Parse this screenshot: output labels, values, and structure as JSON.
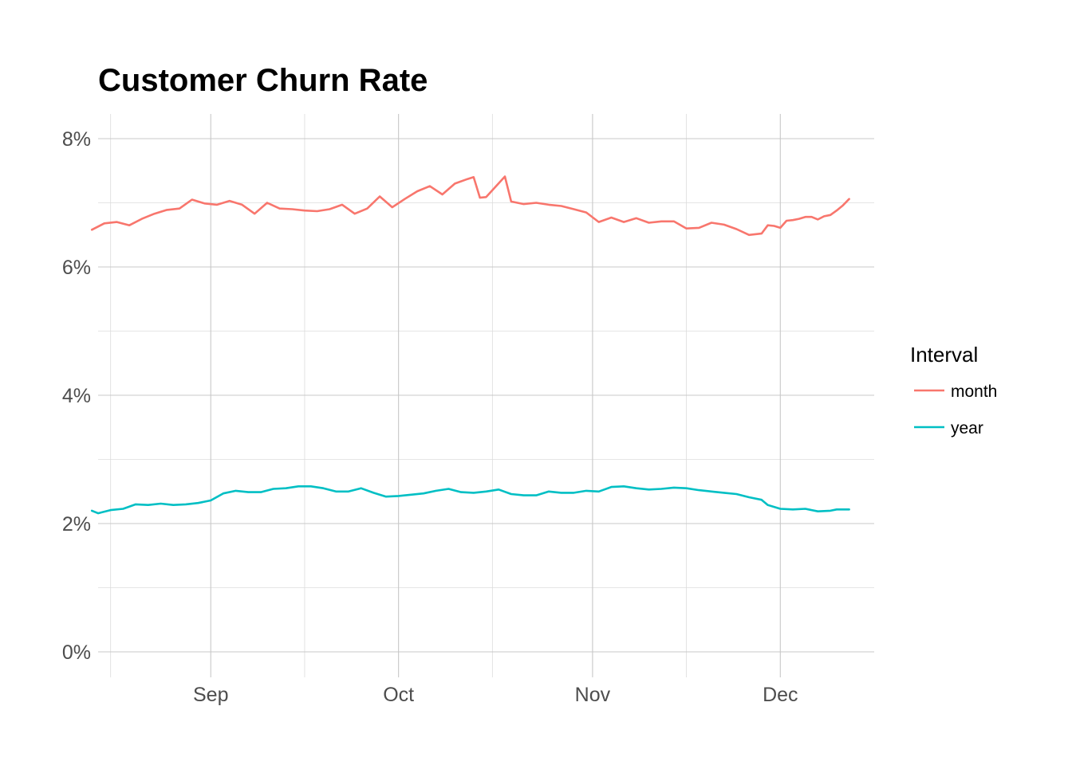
{
  "chart_data": {
    "type": "line",
    "title": "Customer Churn Rate",
    "xlabel": "",
    "ylabel": "",
    "x_range": [
      "2023-08-14",
      "2023-12-16"
    ],
    "ylim": [
      0,
      0.08
    ],
    "y_ticks": [
      {
        "value": 0.0,
        "label": "0%"
      },
      {
        "value": 0.02,
        "label": "2%"
      },
      {
        "value": 0.04,
        "label": "4%"
      },
      {
        "value": 0.06,
        "label": "6%"
      },
      {
        "value": 0.08,
        "label": "8%"
      }
    ],
    "y_minor": [
      0.01,
      0.03,
      0.05,
      0.07
    ],
    "x_ticks": [
      {
        "value": "2023-09-01",
        "label": "Sep"
      },
      {
        "value": "2023-10-01",
        "label": "Oct"
      },
      {
        "value": "2023-11-01",
        "label": "Nov"
      },
      {
        "value": "2023-12-01",
        "label": "Dec"
      }
    ],
    "x_minor": [
      "2023-08-16",
      "2023-09-16",
      "2023-10-16",
      "2023-11-16"
    ],
    "grid": true,
    "legend": {
      "title": "Interval",
      "position": "right"
    },
    "series": [
      {
        "name": "month",
        "color": "#F8766D",
        "points": [
          [
            "2023-08-13",
            0.0658
          ],
          [
            "2023-08-15",
            0.0668
          ],
          [
            "2023-08-17",
            0.067
          ],
          [
            "2023-08-19",
            0.0665
          ],
          [
            "2023-08-21",
            0.0675
          ],
          [
            "2023-08-23",
            0.0683
          ],
          [
            "2023-08-25",
            0.0689
          ],
          [
            "2023-08-27",
            0.0691
          ],
          [
            "2023-08-29",
            0.0705
          ],
          [
            "2023-08-31",
            0.0699
          ],
          [
            "2023-09-02",
            0.0697
          ],
          [
            "2023-09-04",
            0.0703
          ],
          [
            "2023-09-06",
            0.0697
          ],
          [
            "2023-09-08",
            0.0683
          ],
          [
            "2023-09-10",
            0.07
          ],
          [
            "2023-09-12",
            0.0691
          ],
          [
            "2023-09-14",
            0.069
          ],
          [
            "2023-09-16",
            0.0688
          ],
          [
            "2023-09-18",
            0.0687
          ],
          [
            "2023-09-20",
            0.069
          ],
          [
            "2023-09-22",
            0.0697
          ],
          [
            "2023-09-24",
            0.0683
          ],
          [
            "2023-09-26",
            0.0691
          ],
          [
            "2023-09-28",
            0.071
          ],
          [
            "2023-09-30",
            0.0693
          ],
          [
            "2023-10-02",
            0.0706
          ],
          [
            "2023-10-04",
            0.0718
          ],
          [
            "2023-10-06",
            0.0726
          ],
          [
            "2023-10-08",
            0.0713
          ],
          [
            "2023-10-10",
            0.073
          ],
          [
            "2023-10-12",
            0.0737
          ],
          [
            "2023-10-13",
            0.074
          ],
          [
            "2023-10-14",
            0.0708
          ],
          [
            "2023-10-15",
            0.0709
          ],
          [
            "2023-10-18",
            0.0741
          ],
          [
            "2023-10-19",
            0.0702
          ],
          [
            "2023-10-21",
            0.0698
          ],
          [
            "2023-10-23",
            0.07
          ],
          [
            "2023-10-25",
            0.0697
          ],
          [
            "2023-10-27",
            0.0695
          ],
          [
            "2023-10-29",
            0.069
          ],
          [
            "2023-10-31",
            0.0685
          ],
          [
            "2023-11-02",
            0.067
          ],
          [
            "2023-11-04",
            0.0677
          ],
          [
            "2023-11-06",
            0.067
          ],
          [
            "2023-11-08",
            0.0676
          ],
          [
            "2023-11-10",
            0.0669
          ],
          [
            "2023-11-12",
            0.0671
          ],
          [
            "2023-11-14",
            0.0671
          ],
          [
            "2023-11-16",
            0.066
          ],
          [
            "2023-11-18",
            0.0661
          ],
          [
            "2023-11-20",
            0.0669
          ],
          [
            "2023-11-22",
            0.0666
          ],
          [
            "2023-11-24",
            0.0659
          ],
          [
            "2023-11-26",
            0.065
          ],
          [
            "2023-11-28",
            0.0652
          ],
          [
            "2023-11-29",
            0.0665
          ],
          [
            "2023-11-30",
            0.0664
          ],
          [
            "2023-12-01",
            0.0661
          ],
          [
            "2023-12-02",
            0.0672
          ],
          [
            "2023-12-03",
            0.0673
          ],
          [
            "2023-12-04",
            0.0675
          ],
          [
            "2023-12-05",
            0.0678
          ],
          [
            "2023-12-06",
            0.0678
          ],
          [
            "2023-12-07",
            0.0674
          ],
          [
            "2023-12-08",
            0.0679
          ],
          [
            "2023-12-09",
            0.0681
          ],
          [
            "2023-12-10",
            0.0688
          ],
          [
            "2023-12-11",
            0.0696
          ],
          [
            "2023-12-12",
            0.0706
          ]
        ]
      },
      {
        "name": "year",
        "color": "#00BFC4",
        "points": [
          [
            "2023-08-13",
            0.022
          ],
          [
            "2023-08-14",
            0.0216
          ],
          [
            "2023-08-16",
            0.0221
          ],
          [
            "2023-08-18",
            0.0223
          ],
          [
            "2023-08-20",
            0.023
          ],
          [
            "2023-08-22",
            0.0229
          ],
          [
            "2023-08-24",
            0.0231
          ],
          [
            "2023-08-26",
            0.0229
          ],
          [
            "2023-08-28",
            0.023
          ],
          [
            "2023-08-30",
            0.0232
          ],
          [
            "2023-09-01",
            0.0236
          ],
          [
            "2023-09-03",
            0.0247
          ],
          [
            "2023-09-05",
            0.0251
          ],
          [
            "2023-09-07",
            0.0249
          ],
          [
            "2023-09-09",
            0.0249
          ],
          [
            "2023-09-11",
            0.0254
          ],
          [
            "2023-09-13",
            0.0255
          ],
          [
            "2023-09-15",
            0.0258
          ],
          [
            "2023-09-17",
            0.0258
          ],
          [
            "2023-09-19",
            0.0255
          ],
          [
            "2023-09-21",
            0.025
          ],
          [
            "2023-09-23",
            0.025
          ],
          [
            "2023-09-25",
            0.0255
          ],
          [
            "2023-09-27",
            0.0248
          ],
          [
            "2023-09-29",
            0.0242
          ],
          [
            "2023-10-01",
            0.0243
          ],
          [
            "2023-10-03",
            0.0245
          ],
          [
            "2023-10-05",
            0.0247
          ],
          [
            "2023-10-07",
            0.0251
          ],
          [
            "2023-10-09",
            0.0254
          ],
          [
            "2023-10-11",
            0.0249
          ],
          [
            "2023-10-13",
            0.0248
          ],
          [
            "2023-10-15",
            0.025
          ],
          [
            "2023-10-17",
            0.0253
          ],
          [
            "2023-10-19",
            0.0246
          ],
          [
            "2023-10-21",
            0.0244
          ],
          [
            "2023-10-23",
            0.0244
          ],
          [
            "2023-10-25",
            0.025
          ],
          [
            "2023-10-27",
            0.0248
          ],
          [
            "2023-10-29",
            0.0248
          ],
          [
            "2023-10-31",
            0.0251
          ],
          [
            "2023-11-02",
            0.025
          ],
          [
            "2023-11-04",
            0.0257
          ],
          [
            "2023-11-06",
            0.0258
          ],
          [
            "2023-11-08",
            0.0255
          ],
          [
            "2023-11-10",
            0.0253
          ],
          [
            "2023-11-12",
            0.0254
          ],
          [
            "2023-11-14",
            0.0256
          ],
          [
            "2023-11-16",
            0.0255
          ],
          [
            "2023-11-18",
            0.0252
          ],
          [
            "2023-11-20",
            0.025
          ],
          [
            "2023-11-22",
            0.0248
          ],
          [
            "2023-11-24",
            0.0246
          ],
          [
            "2023-11-26",
            0.0241
          ],
          [
            "2023-11-28",
            0.0237
          ],
          [
            "2023-11-29",
            0.0229
          ],
          [
            "2023-11-30",
            0.0226
          ],
          [
            "2023-12-01",
            0.0223
          ],
          [
            "2023-12-03",
            0.0222
          ],
          [
            "2023-12-05",
            0.0223
          ],
          [
            "2023-12-07",
            0.0219
          ],
          [
            "2023-12-09",
            0.022
          ],
          [
            "2023-12-10",
            0.0222
          ],
          [
            "2023-12-12",
            0.0222
          ]
        ]
      }
    ]
  }
}
